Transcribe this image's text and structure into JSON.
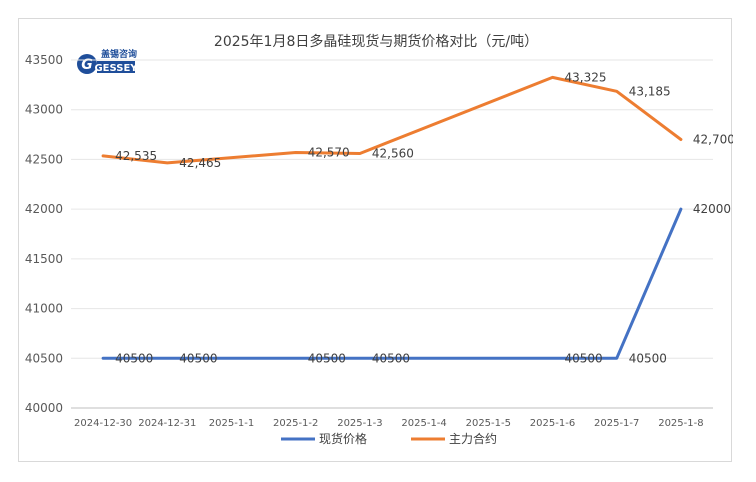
{
  "logo": {
    "top_text": "盖锡咨询",
    "main_text": "GESSEY"
  },
  "chart_data": {
    "type": "line",
    "title": "2025年1月8日多晶硅现货与期货价格对比（元/吨）",
    "categories": [
      "2024-12-30",
      "2024-12-31",
      "2025-1-1",
      "2025-1-2",
      "2025-1-3",
      "2025-1-4",
      "2025-1-5",
      "2025-1-6",
      "2025-1-7",
      "2025-1-8"
    ],
    "ylim": [
      40000,
      43500
    ],
    "yticks": [
      "40000",
      "40500",
      "41000",
      "41500",
      "42000",
      "42500",
      "43000",
      "43500"
    ],
    "grid": true,
    "legend_position": "bottom",
    "series": [
      {
        "name": "现货价格",
        "color": "#4472c4",
        "points": [
          {
            "i": 0,
            "value": 40500,
            "label": "40500"
          },
          {
            "i": 1,
            "value": 40500,
            "label": "40500"
          },
          {
            "i": 3,
            "value": 40500,
            "label": "40500"
          },
          {
            "i": 4,
            "value": 40500,
            "label": "40500"
          },
          {
            "i": 7,
            "value": 40500,
            "label": "40500"
          },
          {
            "i": 8,
            "value": 40500,
            "label": "40500"
          },
          {
            "i": 9,
            "value": 42000,
            "label": "42000"
          }
        ]
      },
      {
        "name": "主力合约",
        "color": "#ed7d31",
        "points": [
          {
            "i": 0,
            "value": 42535,
            "label": "42,535"
          },
          {
            "i": 1,
            "value": 42465,
            "label": "42,465"
          },
          {
            "i": 3,
            "value": 42570,
            "label": "42,570"
          },
          {
            "i": 4,
            "value": 42560,
            "label": "42,560"
          },
          {
            "i": 7,
            "value": 43325,
            "label": "43,325"
          },
          {
            "i": 8,
            "value": 43185,
            "label": "43,185"
          },
          {
            "i": 9,
            "value": 42700,
            "label": "42,700"
          }
        ]
      }
    ]
  }
}
